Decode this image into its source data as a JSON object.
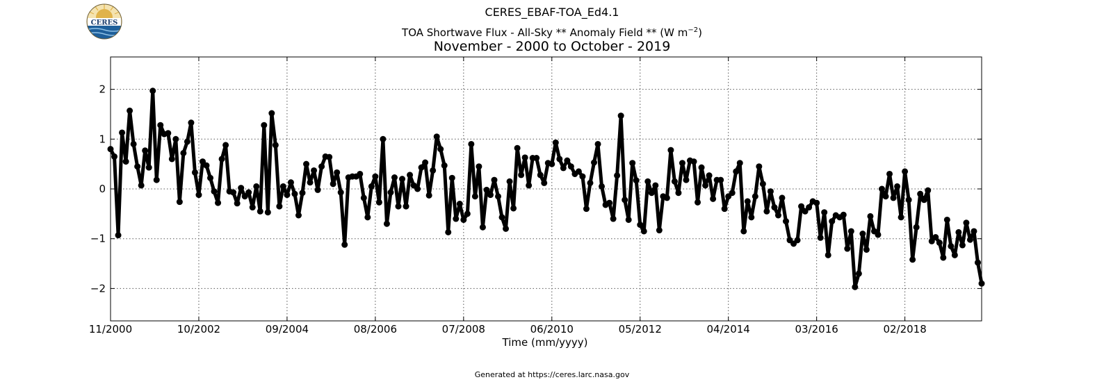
{
  "header": {
    "dataset": "CERES_EBAF-TOA_Ed4.1",
    "subtitle_prefix": "TOA Shortwave Flux - All-Sky ** Anomaly Field **  (W m",
    "subtitle_exp": "−2",
    "subtitle_suffix": ")",
    "period": "November - 2000 to October - 2019",
    "logo_text": "CERES"
  },
  "footer": {
    "text": "Generated at https://ceres.larc.nasa.gov"
  },
  "colors": {
    "line": "#000000",
    "grid": "#555555",
    "logo_sky": "#1e5f9a",
    "logo_sun": "#e0b34a"
  },
  "chart_data": {
    "type": "line",
    "title": "CERES_EBAF-TOA_Ed4.1",
    "xlabel": "Time (mm/yyyy)",
    "ylabel": "",
    "start": "11/2000",
    "end": "10/2019",
    "ylim": [
      -2.65,
      2.65
    ],
    "grid": true,
    "xticks": [
      {
        "date": "11/2000",
        "label": "11/2000"
      },
      {
        "date": "10/2002",
        "label": "10/2002"
      },
      {
        "date": "09/2004",
        "label": "09/2004"
      },
      {
        "date": "08/2006",
        "label": "08/2006"
      },
      {
        "date": "07/2008",
        "label": "07/2008"
      },
      {
        "date": "06/2010",
        "label": "06/2010"
      },
      {
        "date": "05/2012",
        "label": "05/2012"
      },
      {
        "date": "04/2014",
        "label": "04/2014"
      },
      {
        "date": "03/2016",
        "label": "03/2016"
      },
      {
        "date": "02/2018",
        "label": "02/2018"
      }
    ],
    "yticks": [
      {
        "value": 2,
        "label": "2"
      },
      {
        "value": 1,
        "label": "1"
      },
      {
        "value": 0,
        "label": "0"
      },
      {
        "value": -1,
        "label": "−1"
      },
      {
        "value": -2,
        "label": "−2"
      }
    ],
    "series": [
      {
        "values": [
          0.8,
          0.65,
          -0.93,
          1.13,
          0.55,
          1.57,
          0.9,
          0.45,
          0.07,
          0.77,
          0.43,
          1.97,
          0.18,
          1.28,
          1.1,
          1.12,
          0.6,
          1.0,
          -0.26,
          0.72,
          0.95,
          1.33,
          0.33,
          -0.12,
          0.55,
          0.47,
          0.22,
          -0.05,
          -0.28,
          0.6,
          0.88,
          -0.05,
          -0.07,
          -0.29,
          0.02,
          -0.15,
          -0.07,
          -0.37,
          0.05,
          -0.45,
          1.28,
          -0.47,
          1.52,
          0.88,
          -0.35,
          0.05,
          -0.12,
          0.13,
          -0.1,
          -0.53,
          -0.08,
          0.5,
          0.13,
          0.37,
          -0.02,
          0.45,
          0.65,
          0.64,
          0.1,
          0.33,
          -0.07,
          -1.12,
          0.23,
          0.25,
          0.25,
          0.3,
          -0.18,
          -0.57,
          0.05,
          0.25,
          -0.27,
          1.0,
          -0.7,
          -0.07,
          0.23,
          -0.35,
          0.2,
          -0.35,
          0.28,
          0.07,
          0.0,
          0.43,
          0.53,
          -0.13,
          0.37,
          1.05,
          0.8,
          0.47,
          -0.87,
          0.22,
          -0.6,
          -0.3,
          -0.62,
          -0.5,
          0.9,
          -0.15,
          0.45,
          -0.77,
          -0.02,
          -0.12,
          0.18,
          -0.15,
          -0.57,
          -0.8,
          0.15,
          -0.39,
          0.82,
          0.28,
          0.63,
          0.07,
          0.62,
          0.62,
          0.28,
          0.12,
          0.52,
          0.5,
          0.93,
          0.6,
          0.42,
          0.57,
          0.45,
          0.3,
          0.35,
          0.25,
          -0.4,
          0.12,
          0.53,
          0.9,
          0.05,
          -0.32,
          -0.28,
          -0.6,
          0.27,
          1.47,
          -0.22,
          -0.62,
          0.52,
          0.17,
          -0.72,
          -0.85,
          0.15,
          -0.08,
          0.07,
          -0.83,
          -0.15,
          -0.18,
          0.78,
          0.15,
          -0.08,
          0.52,
          0.18,
          0.57,
          0.55,
          -0.27,
          0.43,
          0.07,
          0.27,
          -0.2,
          0.18,
          0.18,
          -0.4,
          -0.15,
          -0.08,
          0.35,
          0.52,
          -0.85,
          -0.25,
          -0.57,
          -0.15,
          0.45,
          0.1,
          -0.45,
          -0.05,
          -0.37,
          -0.53,
          -0.18,
          -0.65,
          -1.03,
          -1.1,
          -1.03,
          -0.35,
          -0.45,
          -0.37,
          -0.25,
          -0.28,
          -0.98,
          -0.47,
          -1.33,
          -0.65,
          -0.53,
          -0.57,
          -0.52,
          -1.2,
          -0.85,
          -1.97,
          -1.7,
          -0.9,
          -1.22,
          -0.55,
          -0.85,
          -0.92,
          0.0,
          -0.15,
          0.3,
          -0.18,
          0.05,
          -0.57,
          0.35,
          -0.22,
          -1.42,
          -0.77,
          -0.1,
          -0.22,
          -0.03,
          -1.05,
          -0.97,
          -1.08,
          -1.38,
          -0.62,
          -1.15,
          -1.33,
          -0.87,
          -1.13,
          -0.68,
          -1.02,
          -0.85,
          -1.48,
          -1.9
        ]
      }
    ]
  }
}
